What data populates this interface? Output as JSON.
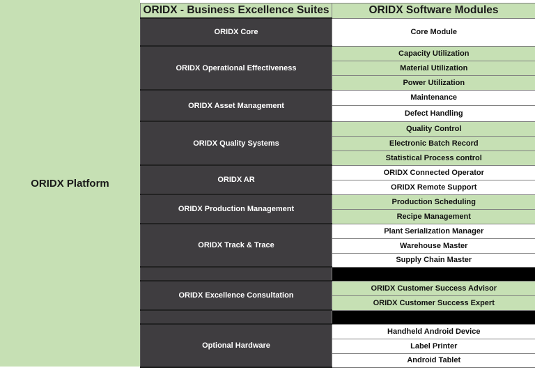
{
  "platform": {
    "label": "ORIDX Platform"
  },
  "header": {
    "suites": "ORIDX - Business Excellence Suites",
    "modules": "ORIDX Software Modules"
  },
  "colors": {
    "green": "#c6e0b4",
    "dark": "#3f3d40",
    "black": "#000000",
    "white": "#ffffff"
  },
  "suites": [
    {
      "name": "ORIDX Core",
      "modules": [
        {
          "label": "Core Module",
          "color": "white"
        }
      ]
    },
    {
      "name": "ORIDX Operational Effectiveness",
      "modules": [
        {
          "label": "Capacity Utilization",
          "color": "green"
        },
        {
          "label": "Material Utilization",
          "color": "green"
        },
        {
          "label": "Power Utilization",
          "color": "green"
        }
      ]
    },
    {
      "name": "ORIDX Asset Management",
      "modules": [
        {
          "label": "Maintenance",
          "color": "white"
        },
        {
          "label": "Defect Handling",
          "color": "white"
        }
      ]
    },
    {
      "name": "ORIDX Quality Systems",
      "modules": [
        {
          "label": "Quality Control",
          "color": "green"
        },
        {
          "label": "Electronic Batch Record",
          "color": "green"
        },
        {
          "label": "Statistical Process control",
          "color": "green"
        }
      ]
    },
    {
      "name": "ORIDX AR",
      "modules": [
        {
          "label": "ORIDX Connected Operator",
          "color": "white"
        },
        {
          "label": "ORIDX Remote Support",
          "color": "white"
        }
      ]
    },
    {
      "name": "ORIDX Production Management",
      "modules": [
        {
          "label": "Production Scheduling",
          "color": "green"
        },
        {
          "label": "Recipe Management",
          "color": "green"
        }
      ]
    },
    {
      "name": "ORIDX Track & Trace",
      "modules": [
        {
          "label": "Plant Serialization Manager",
          "color": "white"
        },
        {
          "label": "Warehouse Master",
          "color": "white"
        },
        {
          "label": "Supply Chain Master",
          "color": "white"
        }
      ]
    },
    {
      "name": "",
      "modules": [
        {
          "label": "",
          "color": "black"
        }
      ]
    },
    {
      "name": "ORIDX Excellence Consultation",
      "modules": [
        {
          "label": "ORIDX Customer Success Advisor",
          "color": "green"
        },
        {
          "label": "ORIDX Customer Success Expert",
          "color": "green"
        }
      ]
    },
    {
      "name": "",
      "modules": [
        {
          "label": "",
          "color": "black"
        }
      ]
    },
    {
      "name": "Optional Hardware",
      "modules": [
        {
          "label": "Handheld Android Device",
          "color": "white"
        },
        {
          "label": "Label Printer",
          "color": "white"
        },
        {
          "label": "Android Tablet",
          "color": "white"
        }
      ]
    }
  ]
}
